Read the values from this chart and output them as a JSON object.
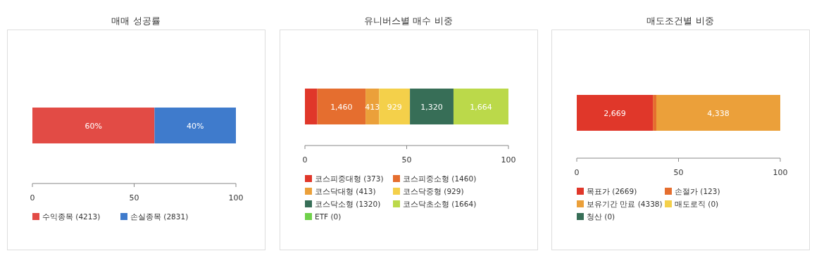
{
  "chart_data": [
    {
      "type": "bar",
      "title": "매매 성공률",
      "orientation": "horizontal",
      "stacked": true,
      "categories": [
        null
      ],
      "xlim": [
        0,
        100
      ],
      "xticks": [
        0,
        50,
        100
      ],
      "legend": "bottom",
      "series": [
        {
          "name": "수익종목 (4213)",
          "color": "#e24b45",
          "values": [
            60
          ],
          "value_labels": [
            "60%"
          ]
        },
        {
          "name": "손실종목 (2831)",
          "color": "#3f7bcc",
          "values": [
            40
          ],
          "value_labels": [
            "40%"
          ]
        }
      ]
    },
    {
      "type": "bar",
      "title": "유니버스별 매수 비중",
      "orientation": "horizontal",
      "stacked": true,
      "categories": [
        null
      ],
      "xlim": [
        0,
        100
      ],
      "xticks": [
        0,
        50,
        100
      ],
      "legend": "bottom",
      "series": [
        {
          "name": "코스피중대형 (373)",
          "color": "#e0372a",
          "values": [
            6.1
          ]
        },
        {
          "name": "코스피중소형 (1460)",
          "color": "#e56e2f",
          "values": [
            23.7
          ]
        },
        {
          "name": "코스닥대형 (413)",
          "color": "#eba03a",
          "values": [
            6.7
          ]
        },
        {
          "name": "코스닥중형 (929)",
          "color": "#f4d04a",
          "values": [
            15.1
          ]
        },
        {
          "name": "코스닥소형 (1320)",
          "color": "#376e57",
          "values": [
            21.4
          ]
        },
        {
          "name": "코스닥초소형 (1664)",
          "color": "#bbd94a",
          "values": [
            27.0
          ]
        },
        {
          "name": "ETF (0)",
          "color": "#6fd14a",
          "values": [
            0
          ]
        }
      ],
      "annotations": [
        {
          "text": "1,460",
          "x": 29.8
        },
        {
          "text": "413",
          "x": 36.5
        },
        {
          "text": "929",
          "x": 51.6
        },
        {
          "text": "1,320",
          "x": 73.0
        },
        {
          "text": "1,664",
          "x": 100.0
        }
      ]
    },
    {
      "type": "bar",
      "title": "매도조건별 비중",
      "orientation": "horizontal",
      "stacked": true,
      "categories": [
        null
      ],
      "xlim": [
        0,
        100
      ],
      "xticks": [
        0,
        50,
        100
      ],
      "legend": "bottom",
      "series": [
        {
          "name": "목표가 (2669)",
          "color": "#e0372a",
          "values": [
            37.4
          ]
        },
        {
          "name": "손절가 (123)",
          "color": "#e56e2f",
          "values": [
            1.7
          ]
        },
        {
          "name": "보유기간 만료 (4338)",
          "color": "#eba03a",
          "values": [
            60.9
          ]
        },
        {
          "name": "매도로직 (0)",
          "color": "#f4d04a",
          "values": [
            0
          ]
        },
        {
          "name": "청산 (0)",
          "color": "#376e57",
          "values": [
            0
          ]
        }
      ],
      "annotations": [
        "2,669",
        "4,338"
      ]
    }
  ]
}
